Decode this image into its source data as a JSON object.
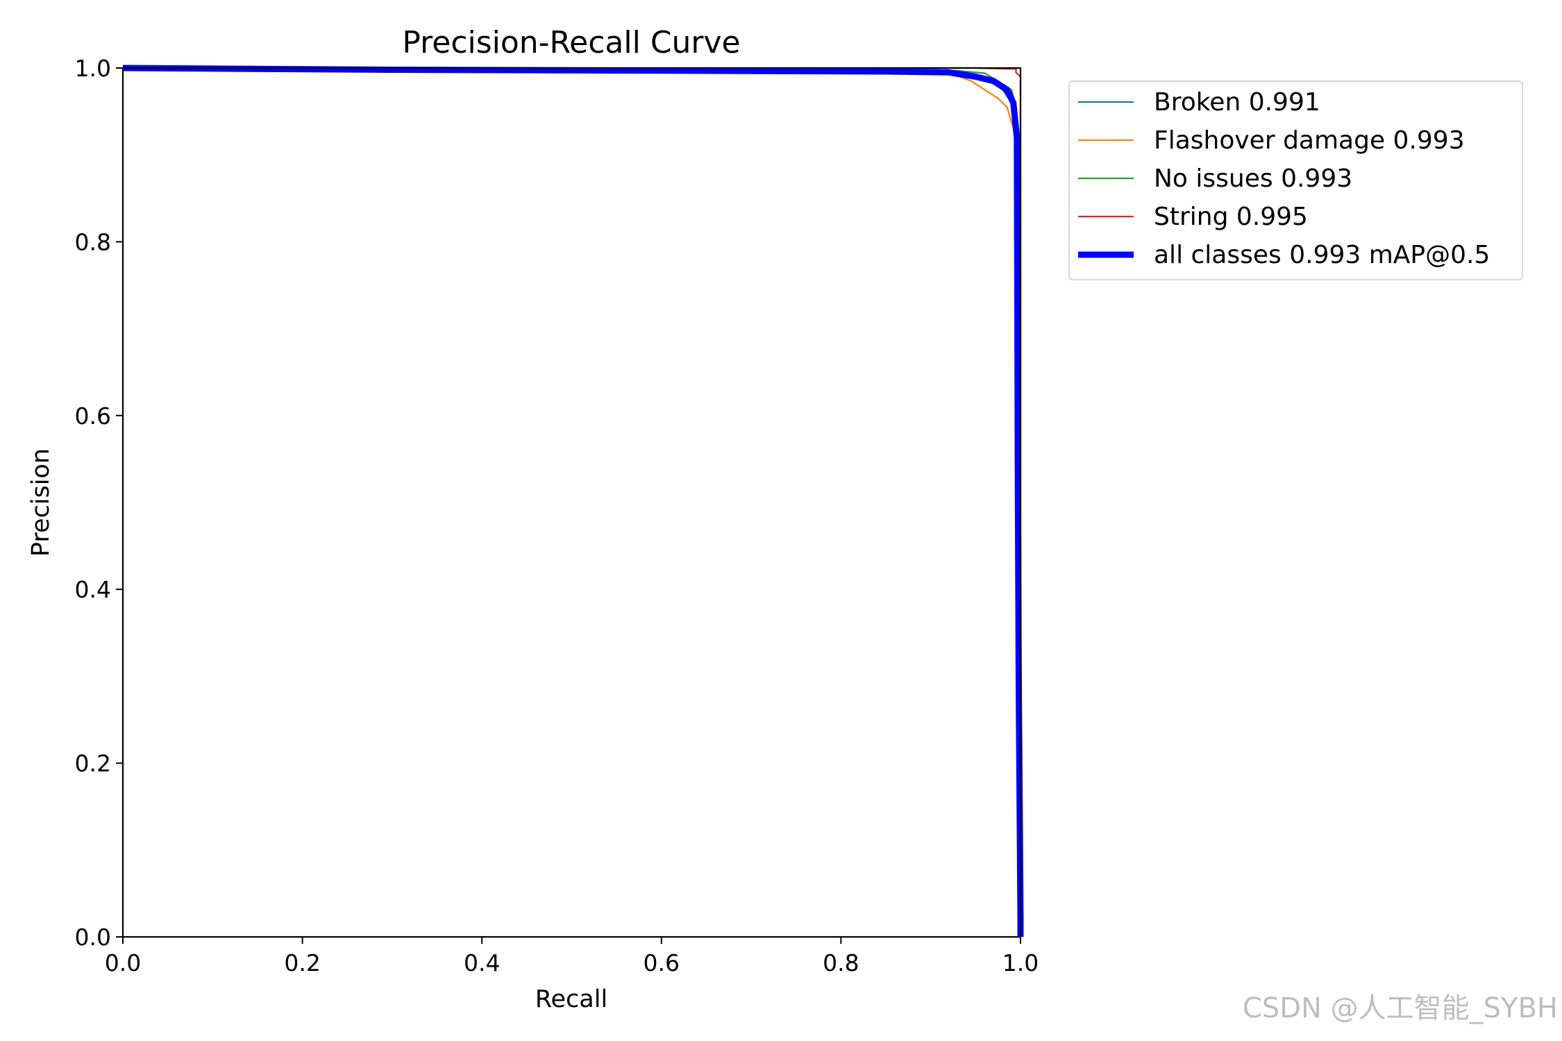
{
  "chart_data": {
    "type": "line",
    "title": "Precision-Recall Curve",
    "xlabel": "Recall",
    "ylabel": "Precision",
    "xlim": [
      0,
      1
    ],
    "ylim": [
      0,
      1
    ],
    "xticks": [
      "0.0",
      "0.2",
      "0.4",
      "0.6",
      "0.8",
      "1.0"
    ],
    "yticks": [
      "0.0",
      "0.2",
      "0.4",
      "0.6",
      "0.8",
      "1.0"
    ],
    "grid": false,
    "legend_position": "outside-right-top",
    "series": [
      {
        "name": "Broken 0.991",
        "color": "#1f77b4",
        "line": "thin",
        "x": [
          0.0,
          0.3,
          0.6,
          0.85,
          0.93,
          0.96,
          0.98,
          0.99,
          0.995,
          0.997,
          0.998,
          1.0,
          1.0
        ],
        "y": [
          1.0,
          0.999,
          0.998,
          0.997,
          0.996,
          0.99,
          0.975,
          0.96,
          0.93,
          0.6,
          0.3,
          0.02,
          0.0
        ]
      },
      {
        "name": "Flashover damage 0.993",
        "color": "#ff7f0e",
        "line": "thin",
        "x": [
          0.0,
          0.3,
          0.6,
          0.85,
          0.92,
          0.945,
          0.96,
          0.975,
          0.985,
          0.995,
          1.0,
          1.0,
          1.0
        ],
        "y": [
          1.0,
          1.0,
          0.999,
          0.998,
          0.995,
          0.985,
          0.975,
          0.965,
          0.955,
          0.92,
          0.85,
          0.3,
          0.0
        ]
      },
      {
        "name": "No issues 0.993",
        "color": "#2ca02c",
        "line": "thin",
        "x": [
          0.0,
          0.3,
          0.6,
          0.85,
          0.93,
          0.96,
          0.975,
          0.99,
          0.995,
          0.998,
          1.0,
          1.0
        ],
        "y": [
          1.0,
          1.0,
          0.999,
          0.998,
          0.997,
          0.994,
          0.985,
          0.975,
          0.955,
          0.7,
          0.2,
          0.0
        ]
      },
      {
        "name": "String 0.995",
        "color": "#d62728",
        "line": "thin",
        "x": [
          0.0,
          0.5,
          0.9,
          0.95,
          0.985,
          0.995,
          0.995,
          1.0,
          1.0
        ],
        "y": [
          1.0,
          1.0,
          1.0,
          1.0,
          0.999,
          0.999,
          0.995,
          0.99,
          0.0
        ]
      },
      {
        "name": "all classes 0.993 mAP@0.5",
        "color": "#0000ff",
        "line": "thick",
        "x": [
          0.0,
          0.3,
          0.6,
          0.85,
          0.92,
          0.95,
          0.97,
          0.985,
          0.992,
          0.996,
          0.997,
          0.998,
          1.0,
          1.0
        ],
        "y": [
          1.0,
          0.998,
          0.997,
          0.996,
          0.995,
          0.99,
          0.985,
          0.975,
          0.96,
          0.92,
          0.55,
          0.3,
          0.02,
          0.0
        ]
      }
    ]
  },
  "watermark": "CSDN @人工智能_SYBH"
}
